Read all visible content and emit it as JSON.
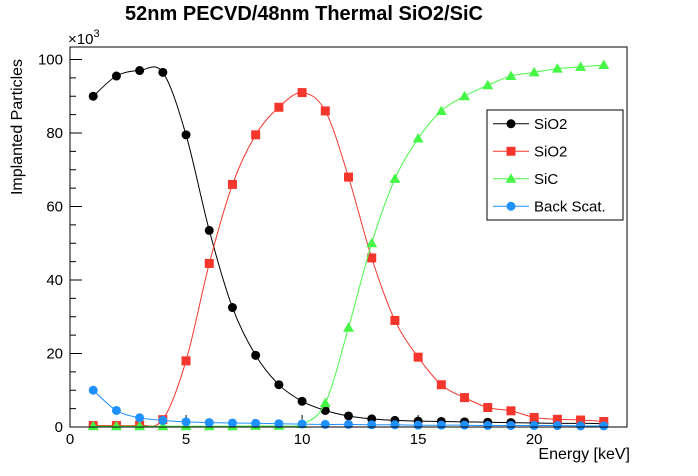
{
  "title": {
    "text": "52nm PECVD/48nm Thermal SiO2/SiC"
  },
  "axes": {
    "x_label": "Energy [keV]",
    "y_label": "Implanted Particles",
    "y_multiplier_base": "×10",
    "y_multiplier_exp": "3"
  },
  "legend": {
    "entries": [
      {
        "key": "sio2-pecvd",
        "label": "SiO2",
        "color": "#000000",
        "marker": "circle"
      },
      {
        "key": "sio2-thermal",
        "label": "SiO2",
        "color": "#f5362d",
        "marker": "square"
      },
      {
        "key": "sic",
        "label": "SiC",
        "color": "#47f747",
        "marker": "triangle"
      },
      {
        "key": "back-scat",
        "label": "Back Scat.",
        "color": "#1e90ff",
        "marker": "circle"
      }
    ]
  },
  "chart_data": {
    "type": "line",
    "title": "52nm PECVD/48nm Thermal SiO2/SiC",
    "xlabel": "Energy [keV]",
    "ylabel": "Implanted Particles",
    "y_units": "particles × 10^3",
    "xlim": [
      0,
      24
    ],
    "ylim": [
      0,
      103.4
    ],
    "x_major_ticks": [
      0,
      5,
      10,
      15,
      20
    ],
    "x_minor_step": 1,
    "y_major_ticks": [
      0,
      20,
      40,
      60,
      80,
      100
    ],
    "y_minor_step": 5,
    "grid": false,
    "legend_position": "right-middle",
    "x": [
      1,
      2,
      3,
      4,
      5,
      6,
      7,
      8,
      9,
      10,
      11,
      12,
      13,
      14,
      15,
      16,
      17,
      18,
      19,
      20,
      21,
      22,
      23
    ],
    "series": [
      {
        "key": "sio2-pecvd",
        "name": "SiO2",
        "color": "#000000",
        "marker": "circle",
        "values": [
          90,
          95.5,
          97,
          96.5,
          79.5,
          53.5,
          32.5,
          19.5,
          11.5,
          7,
          4.5,
          3,
          2.2,
          1.8,
          1.6,
          1.5,
          1.4,
          1.3,
          1.2,
          1.1,
          1.0,
          1.0,
          0.9
        ]
      },
      {
        "key": "sio2-thermal",
        "name": "SiO2",
        "color": "#f5362d",
        "marker": "square",
        "values": [
          0.4,
          0.4,
          0.5,
          2,
          18,
          44.5,
          66,
          79.5,
          87,
          91,
          86,
          68,
          46,
          29,
          19,
          11.5,
          8,
          5.3,
          4.4,
          2.6,
          2.1,
          1.9,
          1.5
        ]
      },
      {
        "key": "sic",
        "name": "SiC",
        "color": "#47f747",
        "marker": "triangle",
        "values": [
          0.2,
          0.2,
          0.2,
          0.2,
          0.2,
          0.2,
          0.2,
          0.3,
          0.3,
          0.8,
          6.5,
          27,
          50,
          67.5,
          78.5,
          86,
          90,
          93,
          95.5,
          96.5,
          97.5,
          98,
          98.5
        ]
      },
      {
        "key": "back-scat",
        "name": "Back Scat.",
        "color": "#1e90ff",
        "marker": "circle",
        "values": [
          10,
          4.5,
          2.5,
          1.8,
          1.4,
          1.2,
          1.1,
          1.0,
          0.9,
          0.8,
          0.7,
          0.7,
          0.6,
          0.6,
          0.5,
          0.5,
          0.5,
          0.4,
          0.4,
          0.4,
          0.4,
          0.3,
          0.3
        ]
      }
    ]
  }
}
